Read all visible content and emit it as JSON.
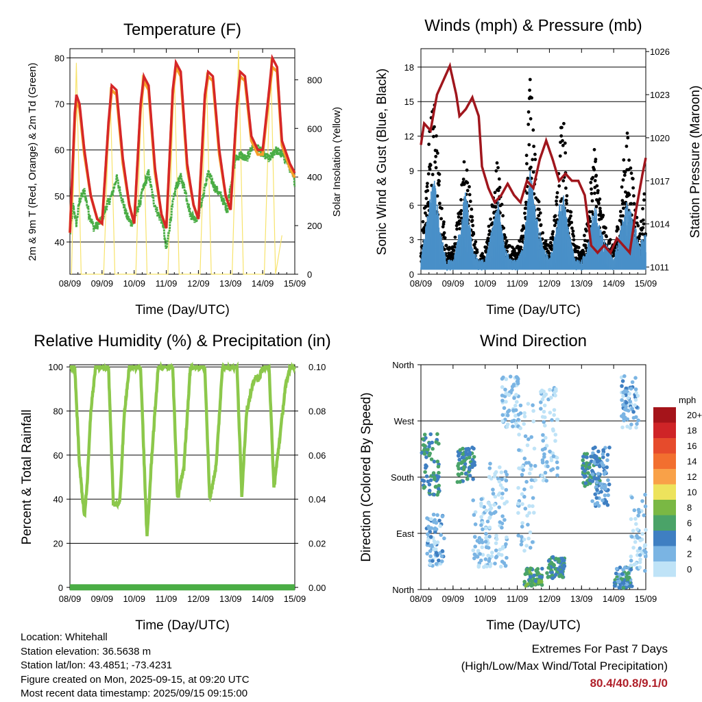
{
  "chart_data": [
    {
      "type": "line",
      "title": "Temperature (F)",
      "xlabel": "Time (Day/UTC)",
      "ylabel": "2m & 9m T (Red, Orange) & 2m Td (Green)",
      "ylabel_right": "Solar Insolation (Yellow)",
      "x_ticks": [
        "08/09",
        "09/09",
        "10/09",
        "11/09",
        "12/09",
        "13/09",
        "14/09",
        "15/09"
      ],
      "ylim": [
        33,
        82
      ],
      "yticks": [
        40,
        50,
        60,
        70,
        80
      ],
      "ylim_right": [
        0,
        928
      ],
      "yticks_right": [
        0,
        200,
        400,
        600,
        800
      ],
      "grid": true,
      "colors": {
        "t2m": "#d62728",
        "t9m": "#f5a02a",
        "td": "#4aad45",
        "solar": "#f7e36b"
      },
      "series": [
        {
          "day": [
            0,
            0.15,
            0.2,
            0.3,
            0.45,
            0.65,
            0.85,
            1.0,
            1.2,
            1.3,
            1.45,
            1.65,
            1.85,
            2.0,
            2.2,
            2.3,
            2.45,
            2.65,
            2.85,
            3.0,
            3.2,
            3.3,
            3.45,
            3.65,
            3.85,
            4.0,
            4.2,
            4.3,
            4.45,
            4.65,
            4.85,
            5.0,
            5.2,
            5.3,
            5.45,
            5.65,
            5.85,
            6.0,
            6.2,
            6.3,
            6.45,
            6.6,
            6.85,
            7.0
          ],
          "values": [
            42,
            68,
            72,
            70,
            60,
            50,
            45,
            44,
            66,
            74,
            73,
            58,
            48,
            44,
            70,
            76,
            74,
            56,
            46,
            43,
            73,
            79,
            77,
            57,
            48,
            45,
            72,
            77,
            76,
            60,
            50,
            47,
            70,
            77,
            76,
            63,
            60,
            60,
            73,
            80,
            78,
            62,
            57,
            55
          ]
        },
        {
          "day": [
            0,
            0.15,
            0.2,
            0.3,
            0.45,
            0.65,
            0.85,
            1.0,
            1.2,
            1.3,
            1.45,
            1.65,
            1.85,
            2.0,
            2.2,
            2.3,
            2.45,
            2.65,
            2.85,
            3.0,
            3.2,
            3.3,
            3.45,
            3.65,
            3.85,
            4.0,
            4.2,
            4.3,
            4.45,
            4.65,
            4.85,
            5.0,
            5.2,
            5.3,
            5.45,
            5.65,
            5.85,
            6.0,
            6.2,
            6.3,
            6.45,
            6.6,
            6.85,
            7.0
          ],
          "values": [
            42,
            66,
            71,
            69,
            59,
            50,
            45,
            44,
            65,
            73,
            72,
            57,
            48,
            44,
            69,
            75,
            73,
            55,
            46,
            43,
            72,
            78,
            76,
            56,
            48,
            45,
            71,
            76,
            75,
            59,
            50,
            47,
            69,
            76,
            75,
            62,
            59,
            59,
            72,
            78,
            77,
            61,
            56,
            54
          ]
        },
        {
          "day": [
            0,
            0.1,
            0.2,
            0.3,
            0.45,
            0.6,
            0.75,
            0.9,
            1.0,
            1.15,
            1.3,
            1.45,
            1.6,
            1.75,
            1.9,
            2.0,
            2.15,
            2.3,
            2.45,
            2.6,
            2.75,
            2.9,
            3.0,
            3.15,
            3.3,
            3.45,
            3.6,
            3.75,
            3.9,
            4.0,
            4.15,
            4.3,
            4.5,
            4.7,
            4.9,
            5.0,
            5.15,
            5.3,
            5.5,
            5.7,
            5.9,
            6.0,
            6.2,
            6.4,
            6.6,
            6.8,
            7.0
          ],
          "values": [
            42,
            48,
            44,
            49,
            51,
            46,
            43,
            44,
            45,
            48,
            50,
            54,
            50,
            46,
            44,
            45,
            48,
            52,
            55,
            49,
            46,
            44,
            38,
            46,
            52,
            54,
            51,
            46,
            45,
            46,
            50,
            55,
            52,
            50,
            47,
            52,
            58,
            59,
            58,
            61,
            60,
            59,
            58,
            60,
            59,
            57,
            53
          ]
        },
        {
          "day": [
            0.05,
            0.2,
            0.35,
            1.05,
            1.25,
            1.4,
            2.05,
            2.25,
            2.4,
            3.05,
            3.25,
            3.4,
            4.05,
            4.25,
            4.4,
            5.05,
            5.25,
            5.4,
            6.05,
            6.25,
            6.4,
            6.6
          ],
          "values": [
            0,
            870,
            0,
            0,
            770,
            0,
            0,
            820,
            0,
            0,
            840,
            0,
            0,
            830,
            0,
            0,
            920,
            0,
            0,
            890,
            0,
            160
          ]
        }
      ]
    },
    {
      "type": "scatter",
      "title": "Winds (mph) & Pressure (mb)",
      "xlabel": "Time (Day/UTC)",
      "ylabel": "Sonic Wind & Gust (Blue, Black)",
      "ylabel_right": "Station Pressure (Maroon)",
      "x_ticks": [
        "08/09",
        "09/09",
        "10/09",
        "11/09",
        "12/09",
        "13/09",
        "14/09",
        "15/09"
      ],
      "ylim": [
        0,
        19.6
      ],
      "yticks": [
        0,
        3,
        6,
        9,
        12,
        15,
        18
      ],
      "ylim_right": [
        1010.5,
        1026.2
      ],
      "yticks_right": [
        1011,
        1014,
        1017,
        1020,
        1023,
        1026
      ],
      "grid": true,
      "colors": {
        "wind": "#4a90c8",
        "gust": "#000000",
        "pressure": "#a0161d"
      },
      "series": [
        {
          "day": [
            0,
            0.2,
            0.4,
            0.6,
            0.8,
            1.0,
            1.2,
            1.4,
            1.6,
            1.8,
            2.0,
            2.2,
            2.4,
            2.6,
            2.8,
            3.0,
            3.2,
            3.4,
            3.6,
            3.8,
            4.0,
            4.2,
            4.4,
            4.6,
            4.8,
            5.0,
            5.2,
            5.4,
            5.6,
            5.8,
            6.0,
            6.2,
            6.4,
            6.6,
            6.8,
            7.0
          ],
          "values": [
            1,
            4,
            7,
            3,
            1,
            1,
            3,
            6,
            2,
            1,
            1,
            3,
            5,
            2,
            1,
            1,
            2,
            7,
            4,
            2,
            1,
            3,
            6,
            3,
            1,
            1,
            2,
            5,
            3,
            2,
            1,
            3,
            5,
            4,
            2,
            3
          ]
        },
        {
          "day": [
            0,
            0.2,
            0.4,
            0.6,
            0.8,
            1.0,
            1.2,
            1.4,
            1.6,
            1.8,
            2.0,
            2.2,
            2.4,
            2.6,
            2.8,
            3.0,
            3.2,
            3.4,
            3.6,
            3.8,
            4.0,
            4.2,
            4.4,
            4.6,
            4.8,
            5.0,
            5.2,
            5.4,
            5.6,
            5.8,
            6.0,
            6.2,
            6.4,
            6.6,
            6.8,
            7.0
          ],
          "values": [
            2,
            9,
            14,
            7,
            2,
            2,
            5,
            10,
            4,
            1,
            2,
            5,
            9,
            3,
            2,
            2,
            4,
            15,
            7,
            3,
            2,
            5,
            13,
            6,
            2,
            2,
            4,
            10,
            5,
            3,
            2,
            5,
            11,
            7,
            3,
            7
          ]
        },
        {
          "day": [
            0,
            0.1,
            0.3,
            0.5,
            0.7,
            0.9,
            1.1,
            1.2,
            1.4,
            1.6,
            1.8,
            1.9,
            2.1,
            2.3,
            2.5,
            2.7,
            2.9,
            3.1,
            3.3,
            3.5,
            3.7,
            3.9,
            4.1,
            4.3,
            4.5,
            4.7,
            4.9,
            5.1,
            5.3,
            5.5,
            5.7,
            5.9,
            6.1,
            6.3,
            6.5,
            6.7,
            6.9,
            7.0
          ],
          "values": [
            1019.5,
            1021,
            1020.5,
            1023,
            1024,
            1025,
            1023,
            1021.5,
            1022,
            1022.8,
            1021.5,
            1018,
            1016.5,
            1015.5,
            1016,
            1016.8,
            1016,
            1015.5,
            1017,
            1016.5,
            1018.5,
            1019.8,
            1018.5,
            1017,
            1017.5,
            1017,
            1017,
            1016,
            1012.5,
            1012,
            1012.5,
            1012,
            1013,
            1012.5,
            1012,
            1015,
            1017.5,
            1018.6
          ]
        }
      ]
    },
    {
      "type": "line",
      "title": "Relative Humidity (%) & Precipitation (in)",
      "xlabel": "Time (Day/UTC)",
      "ylabel": "Percent & Total Rainfall",
      "x_ticks": [
        "08/09",
        "09/09",
        "10/09",
        "11/09",
        "12/09",
        "13/09",
        "14/09",
        "15/09"
      ],
      "ylim": [
        -1,
        101
      ],
      "yticks": [
        0,
        20,
        40,
        60,
        80,
        100
      ],
      "ylim_right": [
        -0.001,
        0.101
      ],
      "yticks_right": [
        "0.00",
        "0.02",
        "0.04",
        "0.06",
        "0.08",
        "0.10"
      ],
      "grid": true,
      "colors": {
        "rh": "#8cc84b",
        "precip": "#4aad45"
      },
      "series": [
        {
          "day": [
            0,
            0.15,
            0.3,
            0.45,
            0.55,
            0.65,
            0.8,
            0.9,
            1.0,
            1.2,
            1.35,
            1.55,
            1.7,
            1.85,
            2.0,
            2.2,
            2.4,
            2.55,
            2.75,
            2.9,
            3.0,
            3.2,
            3.35,
            3.55,
            3.75,
            3.9,
            4.0,
            4.2,
            4.35,
            4.55,
            4.75,
            4.9,
            5.0,
            5.2,
            5.35,
            5.5,
            5.75,
            5.9,
            6.0,
            6.2,
            6.35,
            6.55,
            6.7,
            6.85,
            7.0
          ],
          "values": [
            100,
            100,
            55,
            32,
            50,
            80,
            100,
            100,
            100,
            100,
            38,
            38,
            80,
            100,
            100,
            100,
            22,
            60,
            100,
            100,
            100,
            100,
            40,
            55,
            100,
            100,
            100,
            100,
            40,
            55,
            100,
            100,
            100,
            100,
            42,
            80,
            95,
            95,
            100,
            100,
            45,
            70,
            90,
            100,
            100
          ]
        },
        {
          "day": [
            0,
            7.0
          ],
          "values": [
            0,
            0
          ]
        }
      ]
    },
    {
      "type": "scatter",
      "title": "Wind Direction",
      "xlabel": "Time (Day/UTC)",
      "ylabel": "Direction (Colored By Speed)",
      "x_ticks": [
        "08/09",
        "09/09",
        "10/09",
        "11/09",
        "12/09",
        "13/09",
        "14/09",
        "15/09"
      ],
      "y_ticks": [
        "North",
        "East",
        "South",
        "West",
        "North"
      ],
      "ylim": [
        0,
        360
      ],
      "grid": true,
      "legend": {
        "title": "mph",
        "labels": [
          "20+",
          "18",
          "16",
          "14",
          "12",
          "10",
          "8",
          "6",
          "4",
          "2",
          "0"
        ],
        "colors": [
          "#a5141a",
          "#cf2427",
          "#e64b2c",
          "#f26f2f",
          "#f9a148",
          "#ede35c",
          "#7ab844",
          "#4aa368",
          "#3f7fc2",
          "#7ab4e3",
          "#bfe3f7"
        ],
        "placement": "right"
      },
      "clusters": [
        {
          "day": 0.3,
          "dir_center": 200,
          "dir_spread": 70,
          "speed": 5
        },
        {
          "day": 0.45,
          "dir_center": 80,
          "dir_spread": 60,
          "speed": 2
        },
        {
          "day": 1.4,
          "dir_center": 200,
          "dir_spread": 40,
          "speed": 5
        },
        {
          "day": 1.9,
          "dir_center": 90,
          "dir_spread": 80,
          "speed": 1
        },
        {
          "day": 2.4,
          "dir_center": 120,
          "dir_spread": 120,
          "speed": 1
        },
        {
          "day": 2.8,
          "dir_center": 300,
          "dir_spread": 60,
          "speed": 1
        },
        {
          "day": 3.5,
          "dir_center": 20,
          "dir_spread": 20,
          "speed": 6
        },
        {
          "day": 3.3,
          "dir_center": 180,
          "dir_spread": 170,
          "speed": 1
        },
        {
          "day": 4.2,
          "dir_center": 35,
          "dir_spread": 25,
          "speed": 5
        },
        {
          "day": 4.0,
          "dir_center": 250,
          "dir_spread": 110,
          "speed": 1
        },
        {
          "day": 5.3,
          "dir_center": 190,
          "dir_spread": 40,
          "speed": 5
        },
        {
          "day": 5.6,
          "dir_center": 180,
          "dir_spread": 70,
          "speed": 3
        },
        {
          "day": 6.3,
          "dir_center": 20,
          "dir_spread": 25,
          "speed": 4
        },
        {
          "day": 6.5,
          "dir_center": 300,
          "dir_spread": 60,
          "speed": 2
        },
        {
          "day": 6.8,
          "dir_center": 90,
          "dir_spread": 90,
          "speed": 1
        }
      ]
    }
  ],
  "info": {
    "location": "Location: Whitehall",
    "elevation": "Station elevation: 36.5638 m",
    "latlon": "Station lat/lon: 43.4851; -73.4231",
    "created": "Figure created on Mon, 2025-09-15, at 09:20 UTC",
    "recent": "Most recent data timestamp: 2025/09/15 09:15:00"
  },
  "extremes": {
    "line1": "Extremes For Past 7 Days",
    "line2": "(High/Low/Max Wind/Total Precipitation)",
    "value": "80.4/40.8/9.1/0",
    "value_color": "#b0202a"
  }
}
